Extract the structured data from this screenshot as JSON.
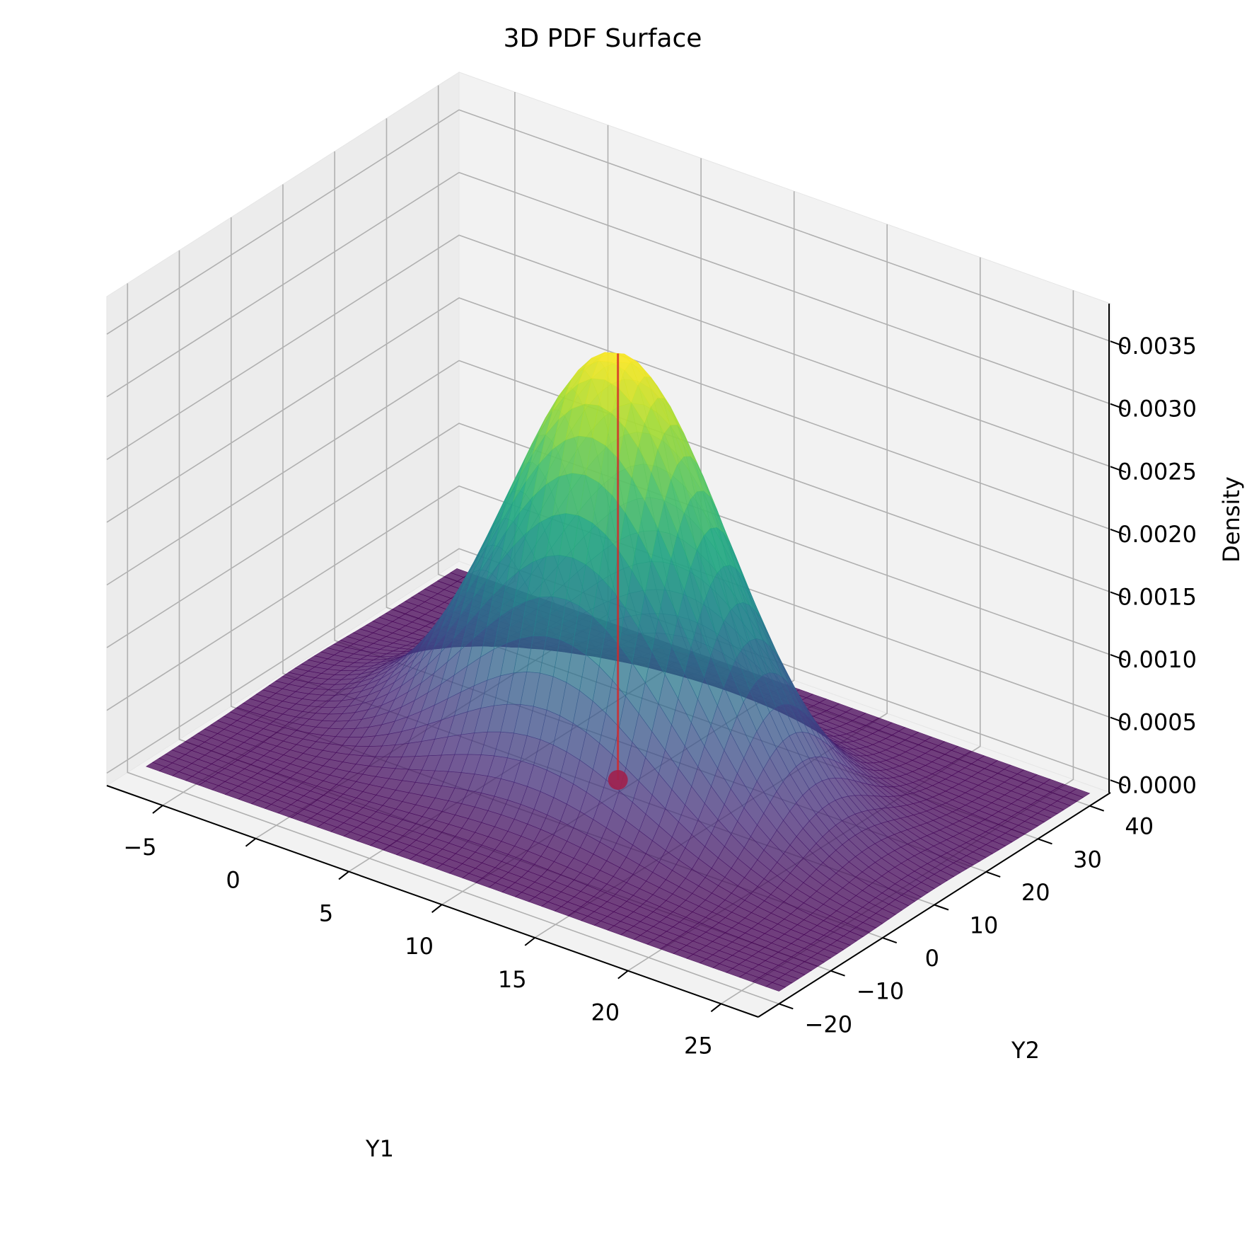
{
  "chart_data": {
    "type": "surface3d",
    "title": "3D PDF Surface",
    "xlabel": "Y1",
    "ylabel": "Y2",
    "zlabel": "Density",
    "xlim": [
      -8,
      27
    ],
    "ylim": [
      -24,
      44
    ],
    "zlim": [
      -0.0001,
      0.0038
    ],
    "x_ticks": [
      -5,
      0,
      5,
      10,
      15,
      20,
      25
    ],
    "x_tick_labels": [
      "−5",
      "0",
      "5",
      "10",
      "15",
      "20",
      "25"
    ],
    "y_ticks": [
      -20,
      -10,
      0,
      10,
      20,
      30,
      40
    ],
    "y_tick_labels": [
      "−20",
      "−10",
      "0",
      "10",
      "20",
      "30",
      "40"
    ],
    "z_ticks": [
      0.0,
      0.0005,
      0.001,
      0.0015,
      0.002,
      0.0025,
      0.003,
      0.0035
    ],
    "z_tick_labels": [
      "0.0000",
      "0.0005",
      "0.0010",
      "0.0015",
      "0.0020",
      "0.0025",
      "0.0030",
      "0.0035"
    ],
    "surface": {
      "distribution": "bivariate normal",
      "mean": [
        10,
        10
      ],
      "std": [
        5.5,
        8.5
      ],
      "correlation": 0,
      "peak_density": 0.0034,
      "x_range": [
        -7,
        27
      ],
      "y_range": [
        -20,
        40
      ],
      "colormap": "viridis",
      "alpha": 0.75
    },
    "marker": {
      "x": 10,
      "y": 10,
      "z_bottom": 0.0,
      "z_top": 0.0034,
      "line_color": "#d62728",
      "point_color": "#a0204c"
    },
    "grid": true,
    "legend": false
  }
}
